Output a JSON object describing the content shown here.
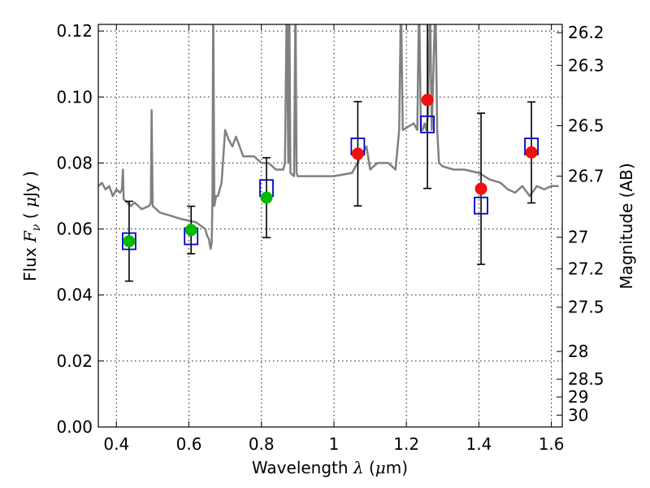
{
  "chart_data": {
    "type": "scatter",
    "title": "",
    "xlabel": "Wavelength  λ (μm)",
    "ylabel": "Flux  F_ν  ( μJy )",
    "ylabel_parts": {
      "lead": "Flux  ",
      "sym": "F",
      "sub": "ν",
      "open": "  ( ",
      "mu": "μ",
      "unit": "Jy )"
    },
    "xlabel_parts": {
      "lead": "Wavelength  ",
      "sym": "λ",
      "open": " (",
      "mu": "μ",
      "unit": "m)"
    },
    "ylabel_right": "Magnitude (AB)",
    "xlim": [
      0.35,
      1.63
    ],
    "ylim": [
      0.0,
      0.122
    ],
    "grid": true,
    "xticks": [
      0.4,
      0.6,
      0.8,
      1.0,
      1.2,
      1.4,
      1.6
    ],
    "xtick_labels": [
      "0.4",
      "0.6",
      "0.8",
      "1",
      "1.2",
      "1.4",
      "1.6"
    ],
    "yticks": [
      0.0,
      0.02,
      0.04,
      0.06,
      0.08,
      0.1,
      0.12
    ],
    "ytick_labels": [
      "0.00",
      "0.02",
      "0.04",
      "0.06",
      "0.08",
      "0.10",
      "0.12"
    ],
    "right_ticks": [
      {
        "flux": 0.1195,
        "label": "26.2"
      },
      {
        "flux": 0.1096,
        "label": "26.3"
      },
      {
        "flux": 0.0913,
        "label": "26.5"
      },
      {
        "flux": 0.076,
        "label": "26.7"
      },
      {
        "flux": 0.0575,
        "label": "27"
      },
      {
        "flux": 0.0479,
        "label": "27.2"
      },
      {
        "flux": 0.0363,
        "label": "27.5"
      },
      {
        "flux": 0.0229,
        "label": "28"
      },
      {
        "flux": 0.0145,
        "label": "28.5"
      },
      {
        "flux": 0.0091,
        "label": "29"
      },
      {
        "flux": 0.0036,
        "label": "30"
      }
    ],
    "observed_optical": {
      "color": "#00bb00",
      "x": [
        0.435,
        0.606,
        0.814
      ],
      "y": [
        0.0563,
        0.0597,
        0.0695
      ],
      "yerr": [
        0.0121,
        0.0072,
        0.0121
      ]
    },
    "observed_nir": {
      "color": "#ee1111",
      "x": [
        1.066,
        1.258,
        1.406,
        1.545
      ],
      "y": [
        0.0828,
        0.0991,
        0.0722,
        0.0832
      ],
      "yerr": [
        0.0158,
        0.0268,
        0.0229,
        0.0153
      ]
    },
    "model_photometry": {
      "color": "#0000cc",
      "x": [
        0.435,
        0.606,
        0.814,
        1.066,
        1.258,
        1.406,
        1.545
      ],
      "y": [
        0.0563,
        0.0578,
        0.0724,
        0.085,
        0.0917,
        0.0671,
        0.085
      ]
    },
    "model_spectrum": {
      "color": "#808080",
      "x": [
        0.35,
        0.36,
        0.37,
        0.38,
        0.39,
        0.4,
        0.41,
        0.415,
        0.418,
        0.42,
        0.43,
        0.44,
        0.45,
        0.47,
        0.49,
        0.495,
        0.497,
        0.5,
        0.52,
        0.55,
        0.58,
        0.62,
        0.645,
        0.65,
        0.655,
        0.658,
        0.66,
        0.663,
        0.665,
        0.667,
        0.67,
        0.675,
        0.68,
        0.69,
        0.7,
        0.71,
        0.72,
        0.73,
        0.75,
        0.78,
        0.8,
        0.82,
        0.84,
        0.86,
        0.865,
        0.87,
        0.874,
        0.877,
        0.88,
        0.89,
        0.894,
        0.897,
        0.9,
        0.92,
        0.95,
        1.0,
        1.05,
        1.09,
        1.1,
        1.12,
        1.15,
        1.17,
        1.18,
        1.185,
        1.19,
        1.22,
        1.23,
        1.235,
        1.24,
        1.245,
        1.25,
        1.255,
        1.26,
        1.265,
        1.27,
        1.28,
        1.285,
        1.29,
        1.3,
        1.33,
        1.36,
        1.4,
        1.43,
        1.46,
        1.48,
        1.5,
        1.52,
        1.54,
        1.56,
        1.58,
        1.6,
        1.62
      ],
      "y": [
        0.073,
        0.074,
        0.072,
        0.073,
        0.07,
        0.072,
        0.071,
        0.072,
        0.078,
        0.069,
        0.068,
        0.067,
        0.068,
        0.066,
        0.067,
        0.068,
        0.096,
        0.067,
        0.065,
        0.064,
        0.063,
        0.062,
        0.06,
        0.058,
        0.057,
        0.055,
        0.054,
        0.056,
        0.07,
        0.13,
        0.067,
        0.07,
        0.07,
        0.074,
        0.09,
        0.087,
        0.085,
        0.088,
        0.082,
        0.082,
        0.08,
        0.08,
        0.078,
        0.078,
        0.08,
        0.13,
        0.08,
        0.13,
        0.077,
        0.076,
        0.13,
        0.077,
        0.076,
        0.076,
        0.076,
        0.076,
        0.077,
        0.085,
        0.078,
        0.08,
        0.08,
        0.078,
        0.09,
        0.13,
        0.09,
        0.092,
        0.09,
        0.13,
        0.09,
        0.09,
        0.092,
        0.09,
        0.095,
        0.13,
        0.09,
        0.13,
        0.09,
        0.08,
        0.079,
        0.078,
        0.078,
        0.077,
        0.075,
        0.074,
        0.072,
        0.071,
        0.073,
        0.07,
        0.073,
        0.072,
        0.073,
        0.073
      ]
    }
  }
}
